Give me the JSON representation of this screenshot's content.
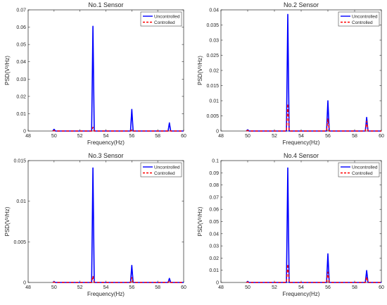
{
  "chart_data": [
    {
      "type": "line",
      "title": "No.1 Sensor",
      "xlabel": "Frequency(Hz)",
      "ylabel": "PSD(V²/Hz)",
      "xlim": [
        48,
        60
      ],
      "ylim": [
        0,
        0.07
      ],
      "x_ticks": [
        "48",
        "50",
        "52",
        "54",
        "56",
        "58",
        "60"
      ],
      "y_ticks": [
        "0",
        "0.01",
        "0.02",
        "0.03",
        "0.04",
        "0.05",
        "0.06",
        "0.07"
      ],
      "legend": "top-right",
      "grid": false,
      "series": [
        {
          "name": "Uncontrolled",
          "color": "#0000ff",
          "style": "solid",
          "x": [
            49.9,
            50.0,
            50.1,
            52.9,
            53.0,
            53.1,
            55.9,
            56.0,
            56.1,
            58.8,
            58.9,
            59.0,
            60.0
          ],
          "y": [
            0,
            0.001,
            0,
            0,
            0.0605,
            0,
            0,
            0.0125,
            0,
            0,
            0.0047,
            0,
            0
          ]
        },
        {
          "name": "Controlled",
          "color": "#ff0000",
          "style": "dashed",
          "x": [
            49.9,
            50.0,
            50.1,
            52.9,
            53.0,
            53.1,
            55.9,
            56.0,
            56.1,
            58.8,
            58.9,
            59.0,
            60.0
          ],
          "y": [
            0,
            0.0003,
            0,
            0,
            0.0022,
            0,
            0,
            0.0006,
            0,
            0,
            0.0004,
            0,
            0
          ]
        }
      ]
    },
    {
      "type": "line",
      "title": "No.2 Sensor",
      "xlabel": "Frequency(Hz)",
      "ylabel": "PSD(V²/Hz)",
      "xlim": [
        48,
        60
      ],
      "ylim": [
        0,
        0.04
      ],
      "x_ticks": [
        "48",
        "50",
        "52",
        "54",
        "56",
        "58",
        "60"
      ],
      "y_ticks": [
        "0",
        "0.005",
        "0.01",
        "0.015",
        "0.02",
        "0.025",
        "0.03",
        "0.035",
        "0.04"
      ],
      "legend": "top-right",
      "grid": false,
      "series": [
        {
          "name": "Uncontrolled",
          "color": "#0000ff",
          "style": "solid",
          "x": [
            49.9,
            50.0,
            50.1,
            52.9,
            53.0,
            53.1,
            55.9,
            56.0,
            56.1,
            58.8,
            58.9,
            59.0,
            60.0
          ],
          "y": [
            0,
            0.0004,
            0,
            0,
            0.0385,
            0,
            0,
            0.01,
            0,
            0,
            0.0045,
            0,
            0
          ]
        },
        {
          "name": "Controlled",
          "color": "#ff0000",
          "style": "dashed",
          "x": [
            49.9,
            50.0,
            50.1,
            52.9,
            53.0,
            53.1,
            55.9,
            56.0,
            56.1,
            58.8,
            58.9,
            59.0,
            60.0
          ],
          "y": [
            0,
            0.0002,
            0,
            0,
            0.009,
            0,
            0,
            0.004,
            0,
            0,
            0.0032,
            0,
            0
          ]
        }
      ]
    },
    {
      "type": "line",
      "title": "No.3 Sensor",
      "xlabel": "Frequency(Hz)",
      "ylabel": "PSD(V²/Hz)",
      "xlim": [
        48,
        60
      ],
      "ylim": [
        0,
        0.015
      ],
      "x_ticks": [
        "48",
        "50",
        "52",
        "54",
        "56",
        "58",
        "60"
      ],
      "y_ticks": [
        "0",
        "0.005",
        "0.01",
        "0.015"
      ],
      "legend": "top-right",
      "grid": false,
      "series": [
        {
          "name": "Uncontrolled",
          "color": "#0000ff",
          "style": "solid",
          "x": [
            49.9,
            50.0,
            50.1,
            52.9,
            53.0,
            53.1,
            55.9,
            56.0,
            56.1,
            58.8,
            58.9,
            59.0,
            60.0
          ],
          "y": [
            0,
            0.0001,
            0,
            0,
            0.0141,
            0,
            0,
            0.0021,
            0,
            0,
            0.0005,
            0,
            0
          ]
        },
        {
          "name": "Controlled",
          "color": "#ff0000",
          "style": "dashed",
          "x": [
            49.9,
            50.0,
            50.1,
            52.9,
            53.0,
            53.1,
            55.9,
            56.0,
            56.1,
            58.8,
            58.9,
            59.0,
            60.0
          ],
          "y": [
            0,
            5e-05,
            0,
            0,
            0.0008,
            0,
            0,
            0.0006,
            0,
            0,
            0.0002,
            0,
            0
          ]
        }
      ]
    },
    {
      "type": "line",
      "title": "No.4 Sensor",
      "xlabel": "Frequency(Hz)",
      "ylabel": "PSD(V²/Hz)",
      "xlim": [
        48,
        60
      ],
      "ylim": [
        0,
        0.1
      ],
      "x_ticks": [
        "48",
        "50",
        "52",
        "54",
        "56",
        "58",
        "60"
      ],
      "y_ticks": [
        "0",
        "0.01",
        "0.02",
        "0.03",
        "0.04",
        "0.05",
        "0.06",
        "0.07",
        "0.08",
        "0.09",
        "0.1"
      ],
      "legend": "top-right",
      "grid": false,
      "series": [
        {
          "name": "Uncontrolled",
          "color": "#0000ff",
          "style": "solid",
          "x": [
            49.9,
            50.0,
            50.1,
            52.9,
            53.0,
            53.1,
            55.9,
            56.0,
            56.1,
            58.8,
            58.9,
            59.0,
            60.0
          ],
          "y": [
            0,
            0.0008,
            0,
            0,
            0.094,
            0,
            0,
            0.0235,
            0,
            0,
            0.0098,
            0,
            0
          ]
        },
        {
          "name": "Controlled",
          "color": "#ff0000",
          "style": "dashed",
          "x": [
            49.9,
            50.0,
            50.1,
            52.9,
            53.0,
            53.1,
            55.9,
            56.0,
            56.1,
            58.8,
            58.9,
            59.0,
            60.0
          ],
          "y": [
            0,
            0.0003,
            0,
            0,
            0.015,
            0,
            0,
            0.0085,
            0,
            0,
            0.0045,
            0,
            0
          ]
        }
      ]
    }
  ]
}
